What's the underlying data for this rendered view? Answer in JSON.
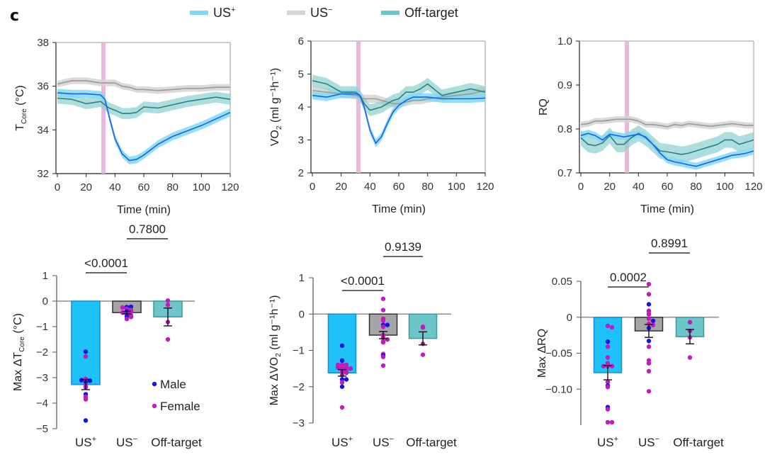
{
  "panel_label": "c",
  "colors": {
    "us_plus_band": "#7fd9f5",
    "us_plus_line": "#1f5fe0",
    "us_minus_band": "#d4d4d4",
    "us_minus_line": "#9a9a9a",
    "off_band": "#8ccfcf",
    "off_line": "#2b8080",
    "stim": "#e6b8dc",
    "bar_us_plus": "#1ec2f6",
    "bar_us_plus_edge": "#1a8ad8",
    "bar_us_minus": "#a5a5a5",
    "bar_us_minus_edge": "#333333",
    "bar_off": "#6cc5c8",
    "bar_off_edge": "#3a9a9c",
    "male": "#1414e6",
    "female": "#c01cb8"
  },
  "legend": [
    {
      "key": "us_plus",
      "base": "US",
      "sup": "+"
    },
    {
      "key": "us_minus",
      "base": "US",
      "sup": "−"
    },
    {
      "key": "off",
      "base": "Off-target",
      "sup": ""
    }
  ],
  "chart_data": [
    {
      "type": "line",
      "id": "tcore-time",
      "xlabel": "Time (min)",
      "ylabel": {
        "base": "T",
        "sub": "Core",
        "rest": " (°C)"
      },
      "xlim": [
        0,
        120
      ],
      "ylim": [
        32,
        38
      ],
      "xticks": [
        0,
        20,
        40,
        60,
        80,
        100,
        120
      ],
      "yticks": [
        32,
        34,
        36,
        38
      ],
      "stimulus_x": 32,
      "x": [
        0,
        10,
        20,
        30,
        33,
        36,
        40,
        45,
        50,
        55,
        60,
        70,
        80,
        90,
        100,
        110,
        120
      ],
      "series": [
        {
          "name": "US+",
          "key": "us_plus",
          "sem": 0.18,
          "values": [
            35.7,
            35.65,
            35.65,
            35.6,
            35.4,
            34.6,
            33.6,
            32.9,
            32.6,
            32.65,
            32.85,
            33.35,
            33.7,
            33.95,
            34.2,
            34.5,
            34.8
          ]
        },
        {
          "name": "US-",
          "key": "us_minus",
          "sem": 0.15,
          "values": [
            36.1,
            36.25,
            36.25,
            36.15,
            36.15,
            36.15,
            36.15,
            36.0,
            35.95,
            35.85,
            35.85,
            35.8,
            35.85,
            35.9,
            35.9,
            35.95,
            35.95
          ]
        },
        {
          "name": "Off-target",
          "key": "off",
          "sem": 0.25,
          "values": [
            35.45,
            35.4,
            35.2,
            35.3,
            35.15,
            35.0,
            34.9,
            34.75,
            34.75,
            34.8,
            35.05,
            35.0,
            35.15,
            35.3,
            35.4,
            35.5,
            35.4
          ]
        }
      ]
    },
    {
      "type": "line",
      "id": "vo2-time",
      "xlabel": "Time (min)",
      "ylabel": {
        "base": "VO",
        "sub": "2",
        "rest": " (ml g⁻¹h⁻¹)"
      },
      "xlim": [
        0,
        120
      ],
      "ylim": [
        2,
        6
      ],
      "xticks": [
        0,
        20,
        40,
        60,
        80,
        100,
        120
      ],
      "yticks": [
        2,
        3,
        4,
        5,
        6
      ],
      "stimulus_x": 32,
      "x": [
        0,
        10,
        20,
        30,
        33,
        36,
        40,
        44,
        48,
        52,
        56,
        60,
        65,
        70,
        75,
        80,
        90,
        100,
        110,
        120
      ],
      "series": [
        {
          "name": "US+",
          "key": "us_plus",
          "sem": 0.12,
          "values": [
            4.35,
            4.3,
            4.4,
            4.4,
            4.35,
            4.0,
            3.3,
            2.9,
            3.1,
            3.5,
            3.85,
            4.05,
            4.2,
            4.3,
            4.3,
            4.3,
            4.25,
            4.25,
            4.25,
            4.27
          ]
        },
        {
          "name": "US-",
          "key": "us_minus",
          "sem": 0.12,
          "values": [
            4.5,
            4.45,
            4.4,
            4.35,
            4.3,
            4.25,
            4.25,
            4.25,
            4.2,
            4.15,
            4.1,
            4.1,
            4.15,
            4.2,
            4.2,
            4.25,
            4.3,
            4.35,
            4.4,
            4.5
          ]
        },
        {
          "name": "Off-target",
          "key": "off",
          "sem": 0.18,
          "values": [
            4.8,
            4.7,
            4.45,
            4.45,
            4.35,
            4.1,
            3.9,
            3.95,
            4.0,
            4.1,
            4.2,
            4.25,
            4.45,
            4.45,
            4.55,
            4.7,
            4.35,
            4.45,
            4.55,
            4.45
          ]
        }
      ]
    },
    {
      "type": "line",
      "id": "rq-time",
      "xlabel": "Time (min)",
      "ylabel": {
        "base": "RQ",
        "sub": "",
        "rest": ""
      },
      "xlim": [
        0,
        120
      ],
      "ylim": [
        0.7,
        1.0
      ],
      "xticks": [
        0,
        20,
        40,
        60,
        80,
        100,
        120
      ],
      "yticks": [
        0.7,
        0.8,
        0.9,
        1.0
      ],
      "ytick_labels": [
        "0.7",
        "0.8",
        "0.9",
        "1.0"
      ],
      "stimulus_x": 32,
      "x": [
        0,
        5,
        10,
        15,
        20,
        25,
        30,
        35,
        40,
        45,
        50,
        55,
        60,
        65,
        70,
        75,
        80,
        85,
        90,
        95,
        100,
        105,
        110,
        115,
        120
      ],
      "series": [
        {
          "name": "US+",
          "key": "us_plus",
          "sem": 0.008,
          "values": [
            0.785,
            0.79,
            0.785,
            0.775,
            0.788,
            0.785,
            0.782,
            0.785,
            0.788,
            0.782,
            0.765,
            0.745,
            0.73,
            0.725,
            0.722,
            0.718,
            0.715,
            0.72,
            0.725,
            0.73,
            0.735,
            0.74,
            0.742,
            0.745,
            0.75
          ]
        },
        {
          "name": "US-",
          "key": "us_minus",
          "sem": 0.007,
          "values": [
            0.81,
            0.812,
            0.818,
            0.818,
            0.82,
            0.822,
            0.822,
            0.822,
            0.818,
            0.81,
            0.81,
            0.808,
            0.805,
            0.81,
            0.808,
            0.812,
            0.81,
            0.808,
            0.806,
            0.808,
            0.81,
            0.812,
            0.81,
            0.808,
            0.808
          ]
        },
        {
          "name": "Off-target",
          "key": "off",
          "sem": 0.018,
          "values": [
            0.78,
            0.765,
            0.762,
            0.768,
            0.785,
            0.765,
            0.765,
            0.78,
            0.79,
            0.78,
            0.765,
            0.75,
            0.748,
            0.745,
            0.742,
            0.745,
            0.75,
            0.755,
            0.76,
            0.765,
            0.775,
            0.775,
            0.765,
            0.77,
            0.775
          ]
        }
      ]
    },
    {
      "type": "bar",
      "id": "max-dtcore",
      "ylabel": {
        "base": "Max ΔT",
        "sub": "Core",
        "rest": " (°C)"
      },
      "ylim": [
        -5,
        1
      ],
      "yticks": [
        -5,
        -4,
        -3,
        -2,
        -1,
        0,
        1
      ],
      "ytick_labels": [
        "−5",
        "−4",
        "−3",
        "−2",
        "−1",
        "0",
        "1"
      ],
      "categories": [
        {
          "base": "US",
          "sup": "+"
        },
        {
          "base": "US",
          "sup": "−"
        },
        {
          "base": "Off-target",
          "sup": ""
        }
      ],
      "values": [
        -3.27,
        -0.45,
        -0.62
      ],
      "sem": [
        0.2,
        0.05,
        0.35
      ],
      "points": [
        [
          {
            "v": -1.98,
            "s": "m"
          },
          {
            "v": -2.17,
            "s": "f"
          },
          {
            "v": -3.08,
            "s": "f"
          },
          {
            "v": -3.05,
            "s": "f"
          },
          {
            "v": -3.12,
            "s": "m"
          },
          {
            "v": -3.1,
            "s": "m"
          },
          {
            "v": -3.18,
            "s": "m"
          },
          {
            "v": -3.3,
            "s": "f"
          },
          {
            "v": -3.38,
            "s": "f"
          },
          {
            "v": -3.65,
            "s": "m"
          },
          {
            "v": -3.75,
            "s": "f"
          },
          {
            "v": -3.85,
            "s": "f"
          },
          {
            "v": -4.68,
            "s": "m"
          }
        ],
        [
          {
            "v": -0.23,
            "s": "m"
          },
          {
            "v": -0.22,
            "s": "m"
          },
          {
            "v": -0.25,
            "s": "f"
          },
          {
            "v": -0.3,
            "s": "f"
          },
          {
            "v": -0.35,
            "s": "f"
          },
          {
            "v": -0.4,
            "s": "m"
          },
          {
            "v": -0.42,
            "s": "f"
          },
          {
            "v": -0.45,
            "s": "f"
          },
          {
            "v": -0.5,
            "s": "f"
          },
          {
            "v": -0.55,
            "s": "f"
          },
          {
            "v": -0.6,
            "s": "m"
          },
          {
            "v": -0.62,
            "s": "f"
          },
          {
            "v": -0.7,
            "s": "f"
          }
        ],
        [
          {
            "v": 0.02,
            "s": "f"
          },
          {
            "v": -0.15,
            "s": "f"
          },
          {
            "v": -0.82,
            "s": "f"
          },
          {
            "v": -1.5,
            "s": "f"
          }
        ]
      ],
      "comparisons": [
        {
          "label": "<0.0001",
          "from": 0,
          "to": 1,
          "level": 1
        },
        {
          "label": "0.7800",
          "from": 1,
          "to": 2,
          "level": 2
        }
      ],
      "sex_legend": [
        {
          "key": "male",
          "label": "Male"
        },
        {
          "key": "female",
          "label": "Female"
        }
      ]
    },
    {
      "type": "bar",
      "id": "max-dvo2",
      "ylabel": {
        "base": "Max ΔVO",
        "sub": "2",
        "rest": " (ml g⁻¹h⁻¹)"
      },
      "ylim": [
        -3,
        1
      ],
      "yticks": [
        -3,
        -2,
        -1,
        0,
        1
      ],
      "ytick_labels": [
        "−3",
        "−2",
        "−1",
        "0",
        "1"
      ],
      "categories": [
        {
          "base": "US",
          "sup": "+"
        },
        {
          "base": "US",
          "sup": "−"
        },
        {
          "base": "Off-target",
          "sup": ""
        }
      ],
      "values": [
        -1.62,
        -0.58,
        -0.67
      ],
      "sem": [
        0.09,
        0.1,
        0.18
      ],
      "points": [
        [
          {
            "v": -0.87,
            "s": "m"
          },
          {
            "v": -1.28,
            "s": "m"
          },
          {
            "v": -1.4,
            "s": "f"
          },
          {
            "v": -1.4,
            "s": "f"
          },
          {
            "v": -1.4,
            "s": "f"
          },
          {
            "v": -1.47,
            "s": "f"
          },
          {
            "v": -1.47,
            "s": "f"
          },
          {
            "v": -1.47,
            "s": "f"
          },
          {
            "v": -1.5,
            "s": "f"
          },
          {
            "v": -1.52,
            "s": "f"
          },
          {
            "v": -1.55,
            "s": "f"
          },
          {
            "v": -1.6,
            "s": "f"
          },
          {
            "v": -1.62,
            "s": "f"
          },
          {
            "v": -1.68,
            "s": "f"
          },
          {
            "v": -1.8,
            "s": "m"
          },
          {
            "v": -1.8,
            "s": "m"
          },
          {
            "v": -1.88,
            "s": "f"
          },
          {
            "v": -2.0,
            "s": "m"
          },
          {
            "v": -2.57,
            "s": "f"
          }
        ],
        [
          {
            "v": 0.42,
            "s": "f"
          },
          {
            "v": 0.11,
            "s": "f"
          },
          {
            "v": -0.13,
            "s": "f"
          },
          {
            "v": -0.18,
            "s": "f"
          },
          {
            "v": -0.3,
            "s": "m"
          },
          {
            "v": -0.3,
            "s": "m"
          },
          {
            "v": -0.35,
            "s": "f"
          },
          {
            "v": -0.58,
            "s": "f"
          },
          {
            "v": -0.65,
            "s": "f"
          },
          {
            "v": -0.7,
            "s": "f"
          },
          {
            "v": -0.75,
            "s": "f"
          },
          {
            "v": -0.78,
            "s": "f"
          },
          {
            "v": -1.1,
            "s": "f"
          },
          {
            "v": -1.14,
            "s": "m"
          },
          {
            "v": -1.18,
            "s": "f"
          },
          {
            "v": -1.42,
            "s": "f"
          }
        ],
        [
          {
            "v": -0.37,
            "s": "f"
          },
          {
            "v": -0.35,
            "s": "f"
          },
          {
            "v": -0.82,
            "s": "f"
          },
          {
            "v": -1.12,
            "s": "f"
          }
        ]
      ],
      "comparisons": [
        {
          "label": "<0.0001",
          "from": 0,
          "to": 1,
          "level": 1
        },
        {
          "label": "0.9139",
          "from": 1,
          "to": 2,
          "level": 2
        }
      ]
    },
    {
      "type": "bar",
      "id": "max-drq",
      "ylabel": {
        "base": "Max ΔRQ",
        "sub": "",
        "rest": ""
      },
      "ylim": [
        -0.15,
        0.05
      ],
      "yticks": [
        -0.1,
        -0.05,
        0,
        0.05
      ],
      "ytick_labels": [
        "−0.10",
        "−0.05",
        "0",
        "0.05"
      ],
      "categories": [
        {
          "base": "US",
          "sup": "+"
        },
        {
          "base": "US",
          "sup": "−"
        },
        {
          "base": "Off-target",
          "sup": ""
        }
      ],
      "values": [
        -0.077,
        -0.019,
        -0.027
      ],
      "sem": [
        0.01,
        0.009,
        0.01
      ],
      "points": [
        [
          {
            "v": -0.012,
            "s": "f"
          },
          {
            "v": -0.014,
            "s": "f"
          },
          {
            "v": -0.034,
            "s": "m"
          },
          {
            "v": -0.041,
            "s": "f"
          },
          {
            "v": -0.056,
            "s": "f"
          },
          {
            "v": -0.064,
            "s": "f"
          },
          {
            "v": -0.068,
            "s": "f"
          },
          {
            "v": -0.068,
            "s": "f"
          },
          {
            "v": -0.068,
            "s": "f"
          },
          {
            "v": -0.09,
            "s": "f"
          },
          {
            "v": -0.095,
            "s": "m"
          },
          {
            "v": -0.097,
            "s": "f"
          },
          {
            "v": -0.125,
            "s": "m"
          },
          {
            "v": -0.128,
            "s": "f"
          },
          {
            "v": -0.146,
            "s": "f"
          },
          {
            "v": -0.146,
            "s": "f"
          }
        ],
        [
          {
            "v": 0.046,
            "s": "f"
          },
          {
            "v": 0.032,
            "s": "f"
          },
          {
            "v": 0.018,
            "s": "m"
          },
          {
            "v": 0.009,
            "s": "f"
          },
          {
            "v": 0.008,
            "s": "f"
          },
          {
            "v": 0.004,
            "s": "f"
          },
          {
            "v": -0.002,
            "s": "f"
          },
          {
            "v": -0.005,
            "s": "m"
          },
          {
            "v": -0.009,
            "s": "f"
          },
          {
            "v": -0.011,
            "s": "f"
          },
          {
            "v": -0.015,
            "s": "m"
          },
          {
            "v": -0.033,
            "s": "m"
          },
          {
            "v": -0.041,
            "s": "f"
          },
          {
            "v": -0.06,
            "s": "f"
          },
          {
            "v": -0.064,
            "s": "f"
          },
          {
            "v": -0.075,
            "s": "f"
          },
          {
            "v": -0.103,
            "s": "f"
          }
        ],
        [
          {
            "v": -0.007,
            "s": "f"
          },
          {
            "v": -0.019,
            "s": "f"
          },
          {
            "v": -0.028,
            "s": "f"
          },
          {
            "v": -0.056,
            "s": "f"
          }
        ]
      ],
      "comparisons": [
        {
          "label": "0.0002",
          "from": 0,
          "to": 1,
          "level": 1
        },
        {
          "label": "0.8991",
          "from": 1,
          "to": 2,
          "level": 2
        }
      ]
    }
  ]
}
